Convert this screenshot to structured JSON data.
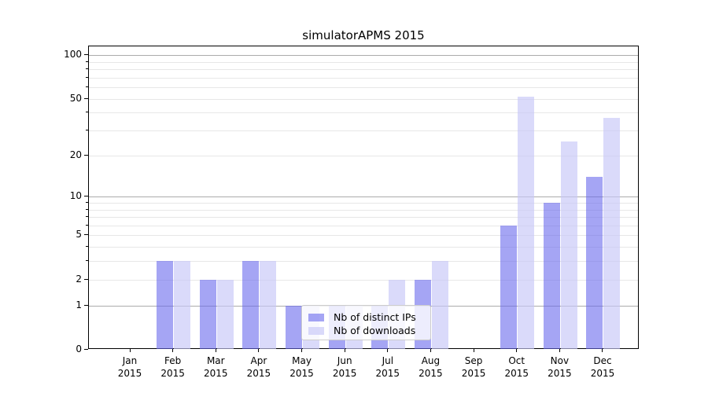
{
  "title": "simulatorAPMS 2015",
  "chart_data": {
    "type": "bar",
    "title": "simulatorAPMS 2015",
    "xlabel": "",
    "ylabel": "",
    "y_scale": "log10(1+x)",
    "ylim": [
      0,
      117
    ],
    "grid": true,
    "year": "2015",
    "categories": [
      "Jan",
      "Feb",
      "Mar",
      "Apr",
      "May",
      "Jun",
      "Jul",
      "Aug",
      "Sep",
      "Oct",
      "Nov",
      "Dec"
    ],
    "series": [
      {
        "name": "Nb of distinct IPs",
        "key": "distinct-ips",
        "color": "rgba(105,105,237,0.6)",
        "values": [
          0,
          3,
          2,
          3,
          1,
          1,
          1,
          2,
          0,
          6,
          9,
          14
        ]
      },
      {
        "name": "Nb of downloads",
        "key": "downloads",
        "color": "rgba(198,198,247,0.65)",
        "values": [
          0,
          3,
          2,
          3,
          1,
          1,
          2,
          3,
          0,
          52,
          25,
          37
        ]
      }
    ],
    "y_ticks": [
      0,
      1,
      2,
      5,
      10,
      20,
      50,
      100
    ],
    "y_major_grid": [
      1,
      10,
      100
    ],
    "y_minor_grid": [
      2,
      3,
      4,
      5,
      6,
      7,
      8,
      9,
      20,
      30,
      40,
      50,
      60,
      70,
      80,
      90
    ],
    "legend_position": "lower center",
    "colors": {
      "major_grid": "#ababab",
      "minor_grid": "#e7e7e7",
      "spine": "#000000",
      "legend_border": "#cccccc"
    }
  }
}
